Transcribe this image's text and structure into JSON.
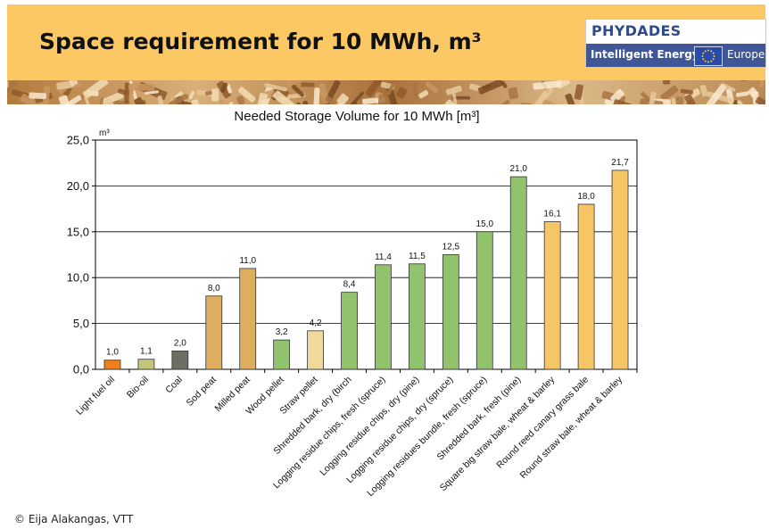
{
  "slide": {
    "title": "Space requirement for 10 MWh, m³",
    "credit": "© Eija Alakangas, VTT"
  },
  "logo": {
    "name": "PHYDADES",
    "tagline": "Intelligent Energy",
    "region": "Europe"
  },
  "chart_data": {
    "type": "bar",
    "title": "Needed Storage Volume for 10 MWh [m³]",
    "ylabel": "m³",
    "xlabel": "",
    "ylim": [
      0,
      25
    ],
    "yticks": [
      "0,0",
      "5,0",
      "10,0",
      "15,0",
      "20,0",
      "25,0"
    ],
    "grid": true,
    "categories": [
      "Light fuel oil",
      "Bio-oil",
      "Coal",
      "Sod peat",
      "Milled peat",
      "Wood pellet",
      "Straw pellet",
      "Shredded bark, dry (birch",
      "Logging residue chips, fresh (spruce)",
      "Logging residue chips, dry (pine)",
      "Logging residue chips, dry (spruce)",
      "Logging residues bundle, fresh (spruce)",
      "Shredded bark, fresh (pine)",
      "Square big straw bale, wheat & barley",
      "Round reed canary grass bale",
      "Round straw bale, wheat & barley"
    ],
    "values": [
      1.0,
      1.1,
      2.0,
      8.0,
      11.0,
      3.2,
      4.2,
      8.4,
      11.4,
      11.5,
      12.5,
      15.0,
      21.0,
      16.1,
      18.0,
      21.7
    ],
    "value_labels": [
      "1,0",
      "1,1",
      "2,0",
      "8,0",
      "11,0",
      "3,2",
      "4,2",
      "8,4",
      "11,4",
      "11,5",
      "12,5",
      "15,0",
      "21,0",
      "16,1",
      "18,0",
      "21,7"
    ],
    "colors": [
      "#ef7f1a",
      "#c4c47a",
      "#6e6e62",
      "#ddae5e",
      "#ddae5e",
      "#90c36b",
      "#f0d99a",
      "#90c36b",
      "#90c36b",
      "#90c36b",
      "#90c36b",
      "#90c36b",
      "#90c36b",
      "#f6c566",
      "#f6c566",
      "#f6c566"
    ]
  }
}
